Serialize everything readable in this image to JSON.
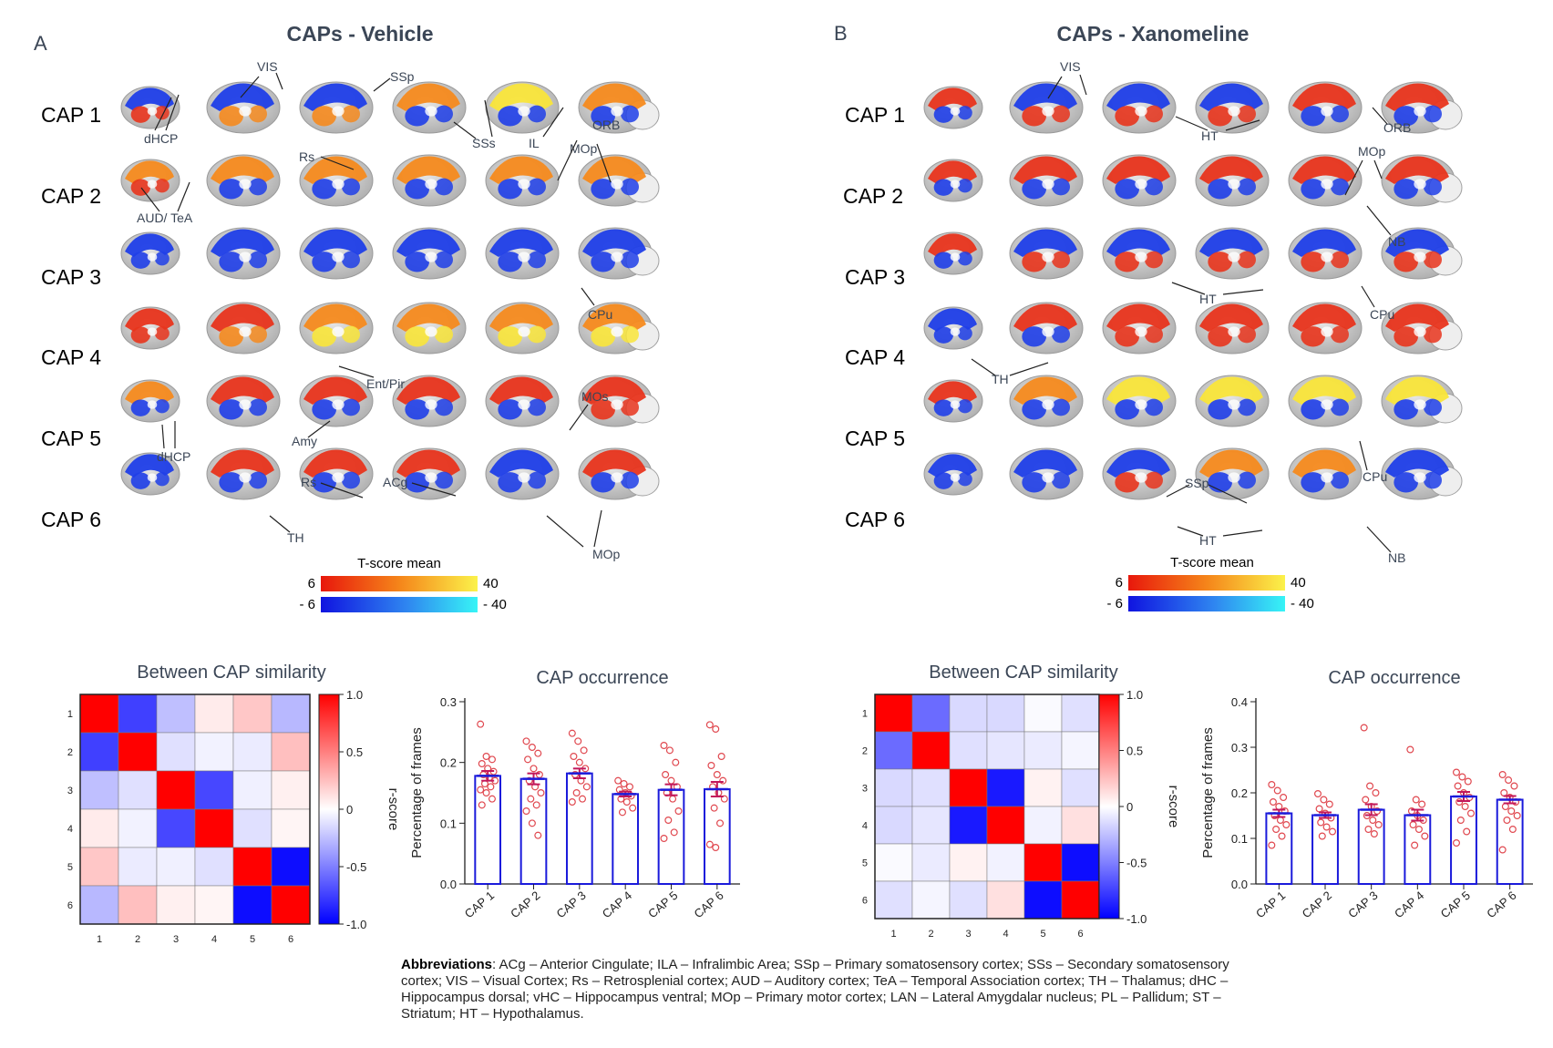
{
  "panels": [
    {
      "letter": "A",
      "title": "CAPs - Vehicle",
      "caps": [
        "CAP 1",
        "CAP 2",
        "CAP 3",
        "CAP 4",
        "CAP 5",
        "CAP 6"
      ],
      "rows": [
        [
          "br",
          "bo",
          "bo",
          "ob",
          "yb",
          "ob"
        ],
        [
          "or",
          "ob",
          "ob",
          "ob",
          "ob",
          "ob"
        ],
        [
          "bb",
          "bb",
          "bb",
          "bb",
          "bb",
          "bb"
        ],
        [
          "rr",
          "ro",
          "oy",
          "oy",
          "oy",
          "oy"
        ],
        [
          "ob",
          "rb",
          "rb",
          "rb",
          "rb",
          "rr"
        ],
        [
          "bb",
          "rb",
          "rb",
          "rb",
          "bb",
          "rb"
        ]
      ],
      "annotations": [
        "VIS",
        "SSp",
        "dHCP",
        "SSs",
        "ORB",
        "IL",
        "MOp",
        "Rs",
        "AUD/ TeA",
        "CPu",
        "Ent/Pir",
        "MOs",
        "dHCP",
        "Amy",
        "Rs",
        "ACg",
        "TH",
        "MOp"
      ],
      "colorbar": {
        "label": "T-score mean",
        "pos_min": "6",
        "pos_max": "40",
        "neg_min": "- 6",
        "neg_max": "- 40"
      }
    },
    {
      "letter": "B",
      "title": "CAPs - Xanomeline",
      "caps": [
        "CAP 1",
        "CAP 2",
        "CAP 3",
        "CAP 4",
        "CAP 5",
        "CAP 6"
      ],
      "rows": [
        [
          "rb",
          "br",
          "br",
          "br",
          "rb",
          "rb"
        ],
        [
          "rb",
          "rb",
          "rb",
          "rb",
          "rb",
          "rb"
        ],
        [
          "rb",
          "br",
          "br",
          "br",
          "br",
          "br"
        ],
        [
          "bb",
          "rb",
          "rr",
          "rr",
          "rr",
          "rr"
        ],
        [
          "rb",
          "ob",
          "yb",
          "yb",
          "yb",
          "yb"
        ],
        [
          "bb",
          "bb",
          "br",
          "ob",
          "ob",
          "bb"
        ]
      ],
      "annotations": [
        "VIS",
        "HT",
        "ORB",
        "MOp",
        "NB",
        "HT",
        "CPu",
        "TH",
        "CPu",
        "SSp",
        "HT",
        "NB"
      ],
      "colorbar": {
        "label": "T-score mean",
        "pos_min": "6",
        "pos_max": "40",
        "neg_min": "- 6",
        "neg_max": "- 40"
      }
    }
  ],
  "colors": {
    "red": "#e8341c",
    "orange": "#f58a1e",
    "yellow": "#f9e53a",
    "blue": "#1f3ee8",
    "lightblue": "#3aa5ef",
    "grey": "#c9c9c9",
    "bar_edge": "#1a1adb",
    "dot": "#e0484f",
    "err": "#c2185b"
  },
  "chart_data": [
    {
      "type": "heatmap",
      "title": "Between CAP similarity",
      "row_labels": [
        "1",
        "2",
        "3",
        "4",
        "5",
        "6"
      ],
      "col_labels": [
        "1",
        "2",
        "3",
        "4",
        "5",
        "6"
      ],
      "values": [
        [
          1.0,
          -0.75,
          -0.25,
          0.08,
          0.22,
          -0.28
        ],
        [
          -0.75,
          1.0,
          -0.12,
          -0.05,
          -0.08,
          0.25
        ],
        [
          -0.25,
          -0.12,
          1.0,
          -0.72,
          -0.06,
          0.06
        ],
        [
          0.08,
          -0.05,
          -0.72,
          1.0,
          -0.12,
          0.04
        ],
        [
          0.22,
          -0.08,
          -0.06,
          -0.12,
          1.0,
          -0.95
        ],
        [
          -0.28,
          0.25,
          0.06,
          0.04,
          -0.95,
          1.0
        ]
      ],
      "colorbar": {
        "label": "r-score",
        "ticks": [
          "1.0",
          "0.5",
          "0",
          "-0.5",
          "-1.0"
        ],
        "range": [
          -1,
          1
        ]
      }
    },
    {
      "type": "bar",
      "title": "CAP occurrence",
      "categories": [
        "CAP 1",
        "CAP 2",
        "CAP 3",
        "CAP 4",
        "CAP 5",
        "CAP 6"
      ],
      "values": [
        0.178,
        0.173,
        0.182,
        0.148,
        0.155,
        0.156
      ],
      "errors": [
        0.008,
        0.009,
        0.008,
        0.004,
        0.009,
        0.012
      ],
      "points": [
        [
          0.263,
          0.21,
          0.205,
          0.198,
          0.19,
          0.185,
          0.18,
          0.175,
          0.17,
          0.165,
          0.16,
          0.155,
          0.15,
          0.14,
          0.13
        ],
        [
          0.235,
          0.225,
          0.215,
          0.205,
          0.19,
          0.18,
          0.17,
          0.16,
          0.15,
          0.14,
          0.13,
          0.12,
          0.1,
          0.08
        ],
        [
          0.248,
          0.235,
          0.22,
          0.21,
          0.2,
          0.19,
          0.18,
          0.17,
          0.16,
          0.15,
          0.14,
          0.135
        ],
        [
          0.17,
          0.165,
          0.16,
          0.155,
          0.15,
          0.145,
          0.14,
          0.135,
          0.125,
          0.118
        ],
        [
          0.228,
          0.22,
          0.2,
          0.18,
          0.17,
          0.16,
          0.15,
          0.14,
          0.12,
          0.105,
          0.085,
          0.075
        ],
        [
          0.262,
          0.255,
          0.21,
          0.195,
          0.18,
          0.17,
          0.16,
          0.15,
          0.14,
          0.125,
          0.1,
          0.065,
          0.06
        ]
      ],
      "ylabel": "Percentage of frames",
      "yticks": [
        "0.0",
        "0.1",
        "0.2",
        "0.3"
      ],
      "ylim": [
        0,
        0.3
      ]
    },
    {
      "type": "heatmap",
      "title": "Between CAP similarity",
      "row_labels": [
        "1",
        "2",
        "3",
        "4",
        "5",
        "6"
      ],
      "col_labels": [
        "1",
        "2",
        "3",
        "4",
        "5",
        "6"
      ],
      "values": [
        [
          1.0,
          -0.58,
          -0.15,
          -0.15,
          -0.02,
          -0.12
        ],
        [
          -0.58,
          1.0,
          -0.12,
          -0.1,
          -0.08,
          -0.04
        ],
        [
          -0.15,
          -0.12,
          1.0,
          -0.9,
          0.05,
          -0.12
        ],
        [
          -0.15,
          -0.1,
          -0.9,
          1.0,
          -0.05,
          0.12
        ],
        [
          -0.02,
          -0.08,
          0.05,
          -0.05,
          1.0,
          -0.95
        ],
        [
          -0.12,
          -0.04,
          -0.12,
          0.12,
          -0.95,
          1.0
        ]
      ],
      "colorbar": {
        "label": "r-score",
        "ticks": [
          "1.0",
          "0.5",
          "0",
          "-0.5",
          "-1.0"
        ],
        "range": [
          -1,
          1
        ]
      }
    },
    {
      "type": "bar",
      "title": "CAP occurrence",
      "categories": [
        "CAP 1",
        "CAP 2",
        "CAP 3",
        "CAP 4",
        "CAP 5",
        "CAP 6"
      ],
      "values": [
        0.155,
        0.151,
        0.163,
        0.151,
        0.192,
        0.185
      ],
      "errors": [
        0.008,
        0.006,
        0.012,
        0.012,
        0.01,
        0.008
      ],
      "points": [
        [
          0.218,
          0.205,
          0.19,
          0.18,
          0.17,
          0.16,
          0.15,
          0.14,
          0.13,
          0.12,
          0.105,
          0.085
        ],
        [
          0.198,
          0.185,
          0.175,
          0.165,
          0.155,
          0.145,
          0.135,
          0.125,
          0.115,
          0.105
        ],
        [
          0.343,
          0.215,
          0.2,
          0.185,
          0.17,
          0.16,
          0.15,
          0.14,
          0.13,
          0.12,
          0.11
        ],
        [
          0.295,
          0.185,
          0.175,
          0.16,
          0.15,
          0.14,
          0.13,
          0.12,
          0.105,
          0.085
        ],
        [
          0.245,
          0.235,
          0.225,
          0.215,
          0.2,
          0.19,
          0.18,
          0.17,
          0.155,
          0.14,
          0.115,
          0.09
        ],
        [
          0.24,
          0.228,
          0.215,
          0.2,
          0.19,
          0.18,
          0.17,
          0.16,
          0.15,
          0.14,
          0.12,
          0.075
        ]
      ],
      "ylabel": "Percentage of frames",
      "yticks": [
        "0.0",
        "0.1",
        "0.2",
        "0.3",
        "0.4"
      ],
      "ylim": [
        0,
        0.4
      ]
    }
  ],
  "abbreviations": {
    "heading": "Abbreviations",
    "text": ":  ACg – Anterior Cingulate; ILA – Infralimbic Area; SSp – Primary somatosensory cortex; SSs – Secondary somatosensory cortex; VIS – Visual Cortex; Rs – Retrosplenial cortex; AUD – Auditory cortex; TeA – Temporal Association cortex; TH – Thalamus; dHC – Hippocampus dorsal; vHC – Hippocampus ventral; MOp – Primary motor cortex; LAN – Lateral Amygdalar nucleus; PL – Pallidum; ST – Striatum; HT – Hypothalamus."
  }
}
